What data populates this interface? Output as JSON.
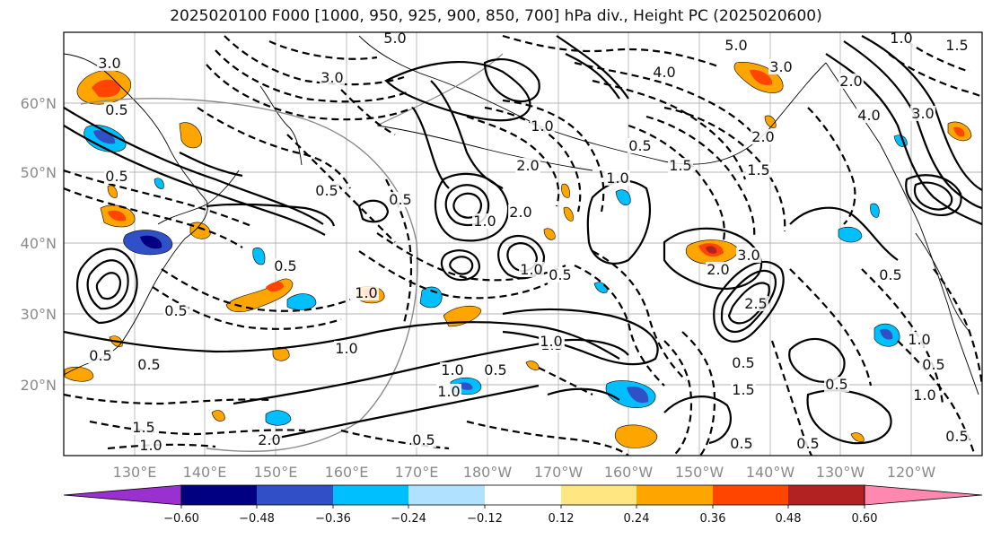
{
  "title": "2025020100 F000 [1000, 950, 925, 900, 850, 700] hPa div., Height PC (2025020600)",
  "lon_labels": [
    "130°E",
    "140°E",
    "150°E",
    "160°E",
    "170°E",
    "180°W",
    "170°W",
    "160°W",
    "150°W",
    "140°W",
    "130°W",
    "120°W"
  ],
  "lat_labels": [
    "60°N",
    "50°N",
    "40°N",
    "30°N",
    "20°N"
  ],
  "colorbar": {
    "ticks": [
      "−0.60",
      "−0.48",
      "−0.36",
      "−0.24",
      "−0.12",
      "0.12",
      "0.24",
      "0.36",
      "0.48",
      "0.60"
    ],
    "colors": [
      "#9b30d0",
      "#000080",
      "#3050c8",
      "#00bfff",
      "#b0e2ff",
      "#ffffff",
      "#ffe680",
      "#ffa500",
      "#ff4500",
      "#b22222",
      "#ff88b0"
    ]
  },
  "contour_labels": [
    "5.0",
    "5.0",
    "3.0",
    "3.0",
    "4.0",
    "3.0",
    "4.0",
    "2.0",
    "2.0",
    "1.0",
    "1.5",
    "2.0",
    "1.0",
    "0.5",
    "1.5",
    "1.0",
    "0.5",
    "0.5",
    "0.5",
    "0.5",
    "0.5",
    "1.0",
    "1.5",
    "1.0",
    "0.5",
    "1.0",
    "1.0",
    "0.5",
    "2.0",
    "1.0",
    "0.5",
    "1.5",
    "1.0",
    "0.5",
    "2.5",
    "2.0",
    "3.0",
    "0.5",
    "1.0",
    "0.5",
    "1.5",
    "0.5",
    "0.5",
    "0.5",
    "0.5",
    "1.0",
    "0.5",
    "0.5",
    "3.0",
    "2.0",
    "1.5",
    "1.0",
    "1.0",
    "0.5"
  ],
  "icons": {
    "map": "map-icon"
  }
}
